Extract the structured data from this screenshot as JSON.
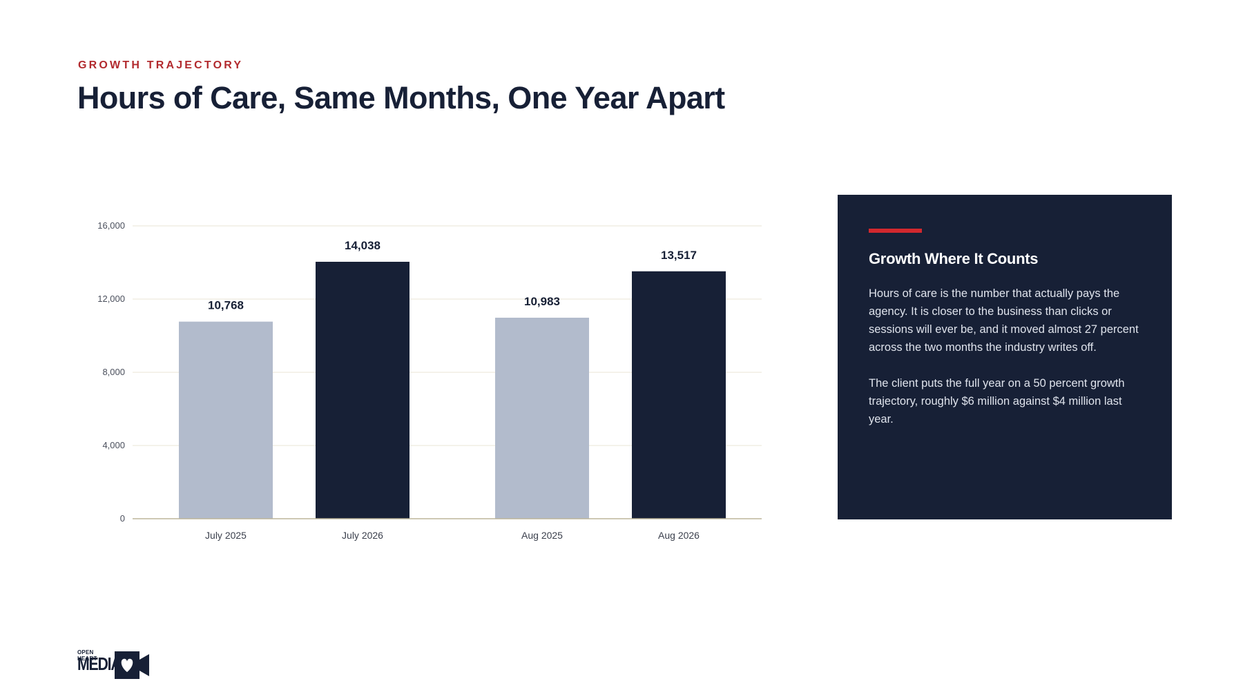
{
  "eyebrow": "GROWTH TRAJECTORY",
  "title": "Hours of Care, Same Months, One Year Apart",
  "panel": {
    "heading": "Growth Where It Counts",
    "paragraphs": [
      "Hours of care is the number that actually pays the agency. It is closer to the business than clicks or sessions will ever be, and it moved almost 27 percent across the two months the industry writes off.",
      "The client puts the full year on a 50 percent growth trajectory, roughly $6 million against $4 million last year."
    ]
  },
  "logo": {
    "line1": "OPEN HEART",
    "line2": "MEDIA",
    "icon": "heart-camera-icon"
  },
  "colors": {
    "accent": "#d2282e",
    "eyebrow": "#b22a2e",
    "navy": "#172036",
    "light_bar": "#b2bbcc",
    "grid": "#e8e4d4",
    "baseline": "#bdb59a"
  },
  "chart_data": {
    "type": "bar",
    "categories": [
      "July 2025",
      "July 2026",
      "Aug 2025",
      "Aug 2026"
    ],
    "values": [
      10768,
      14038,
      10983,
      13517
    ],
    "value_labels": [
      "10,768",
      "14,038",
      "10,983",
      "13,517"
    ],
    "bar_colors": [
      "#b2bbcc",
      "#172036",
      "#b2bbcc",
      "#172036"
    ],
    "ylim": [
      0,
      16000
    ],
    "yticks": [
      0,
      4000,
      8000,
      12000,
      16000
    ],
    "ytick_labels": [
      "0",
      "4,000",
      "8,000",
      "12,000",
      "16,000"
    ],
    "grid": true,
    "legend": "none"
  }
}
